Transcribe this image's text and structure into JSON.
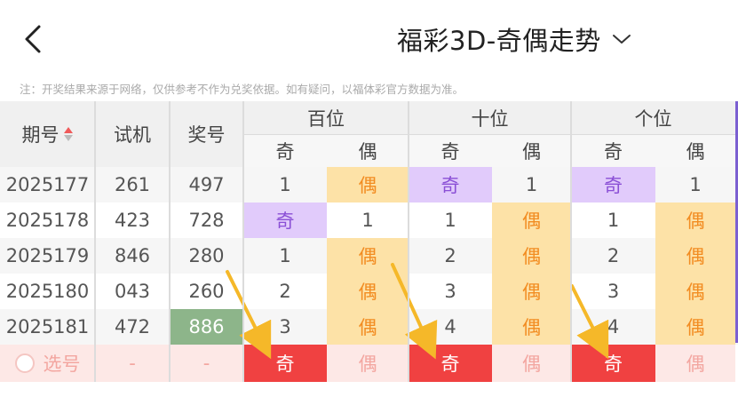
{
  "header": {
    "title": "福彩3D-奇偶走势",
    "back_icon": "chevron-left-icon",
    "dropdown_icon": "chevron-down-icon"
  },
  "notice": "注：开奖结果来源于网络，仅供参考不作为兑奖依据。如有疑问，以福体彩官方数据为准。",
  "table": {
    "col_issue": "期号",
    "col_test": "试机",
    "col_draw": "奖号",
    "groups": [
      "百位",
      "十位",
      "个位"
    ],
    "odd": "奇",
    "even": "偶",
    "rows": [
      {
        "issue": "2025177",
        "test": "261",
        "draw": "497",
        "cells": [
          "1",
          "偶",
          "奇",
          "1",
          "奇",
          "1"
        ]
      },
      {
        "issue": "2025178",
        "test": "423",
        "draw": "728",
        "cells": [
          "奇",
          "1",
          "1",
          "偶",
          "1",
          "偶"
        ]
      },
      {
        "issue": "2025179",
        "test": "846",
        "draw": "280",
        "cells": [
          "1",
          "偶",
          "2",
          "偶",
          "2",
          "偶"
        ]
      },
      {
        "issue": "2025180",
        "test": "043",
        "draw": "260",
        "cells": [
          "2",
          "偶",
          "3",
          "偶",
          "3",
          "偶"
        ]
      },
      {
        "issue": "2025181",
        "test": "472",
        "draw": "886",
        "cells": [
          "3",
          "偶",
          "4",
          "偶",
          "4",
          "偶"
        ]
      }
    ],
    "pick": {
      "label": "选号",
      "test": "-",
      "draw": "-",
      "cells": [
        "奇",
        "偶",
        "奇",
        "偶",
        "奇",
        "偶"
      ]
    }
  },
  "colors": {
    "odd_bg": "#e1cbfb",
    "even_bg": "#fde2a7",
    "pick_red": "#f04141",
    "win_bg": "#8db58a",
    "arrow": "#f5b829"
  }
}
